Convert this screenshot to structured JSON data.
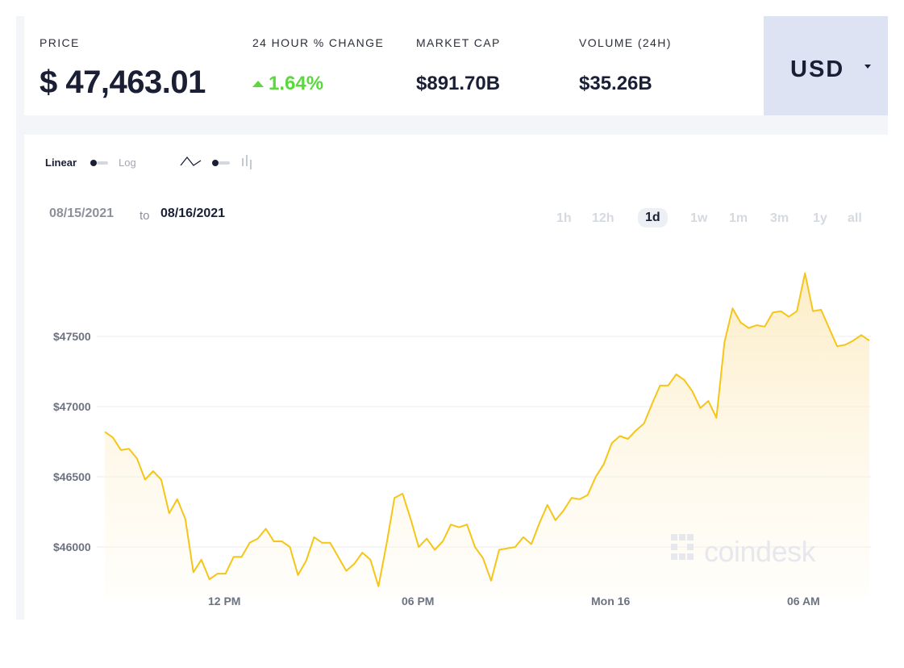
{
  "stats": {
    "price": {
      "label": "PRICE",
      "value": "$ 47,463.01"
    },
    "change": {
      "label": "24 HOUR % CHANGE",
      "value": "1.64%"
    },
    "market_cap": {
      "label": "MARKET CAP",
      "value": "$891.70B"
    },
    "volume": {
      "label": "VOLUME (24H)",
      "value": "$35.26B"
    }
  },
  "currency": {
    "selected": "USD"
  },
  "controls": {
    "linear_label": "Linear",
    "log_label": "Log"
  },
  "date_range": {
    "from": "08/15/2021",
    "to_word": "to",
    "to": "08/16/2021"
  },
  "periods": [
    "1h",
    "12h",
    "1d",
    "1w",
    "1m",
    "3m",
    "1y",
    "all"
  ],
  "active_period": "1d",
  "watermark": "coindesk",
  "colors": {
    "line": "#f5c518",
    "up": "#5ad83c",
    "currency_bg": "#dde3f3"
  },
  "chart_data": {
    "type": "area",
    "yticks": [
      "$46000",
      "$46500",
      "$47000",
      "$47500"
    ],
    "ytick_values": [
      46000,
      46500,
      47000,
      47500
    ],
    "xticks": [
      "12 PM",
      "06 PM",
      "Mon 16",
      "06 AM"
    ],
    "xtick_index": [
      15,
      39,
      63,
      87
    ],
    "ylim": [
      45700,
      48100
    ],
    "grid": true,
    "series": [
      {
        "values": [
          46820,
          46780,
          46690,
          46700,
          46630,
          46480,
          46540,
          46480,
          46240,
          46340,
          46200,
          45820,
          45910,
          45770,
          45810,
          45810,
          45930,
          45930,
          46030,
          46060,
          46130,
          46040,
          46040,
          46000,
          45800,
          45900,
          46070,
          46030,
          46030,
          45930,
          45830,
          45880,
          45960,
          45910,
          45720,
          46020,
          46350,
          46380,
          46200,
          46000,
          46060,
          45980,
          46040,
          46160,
          46140,
          46160,
          46000,
          45920,
          45760,
          45980,
          45990,
          46000,
          46070,
          46020,
          46170,
          46300,
          46190,
          46260,
          46350,
          46340,
          46370,
          46500,
          46590,
          46740,
          46790,
          46770,
          46830,
          46880,
          47020,
          47150,
          47150,
          47230,
          47190,
          47110,
          46990,
          47040,
          46920,
          47460,
          47700,
          47600,
          47560,
          47580,
          47570,
          47670,
          47680,
          47640,
          47680,
          47950,
          47680,
          47690,
          47560,
          47430,
          47440,
          47470,
          47510,
          47470
        ]
      }
    ]
  }
}
